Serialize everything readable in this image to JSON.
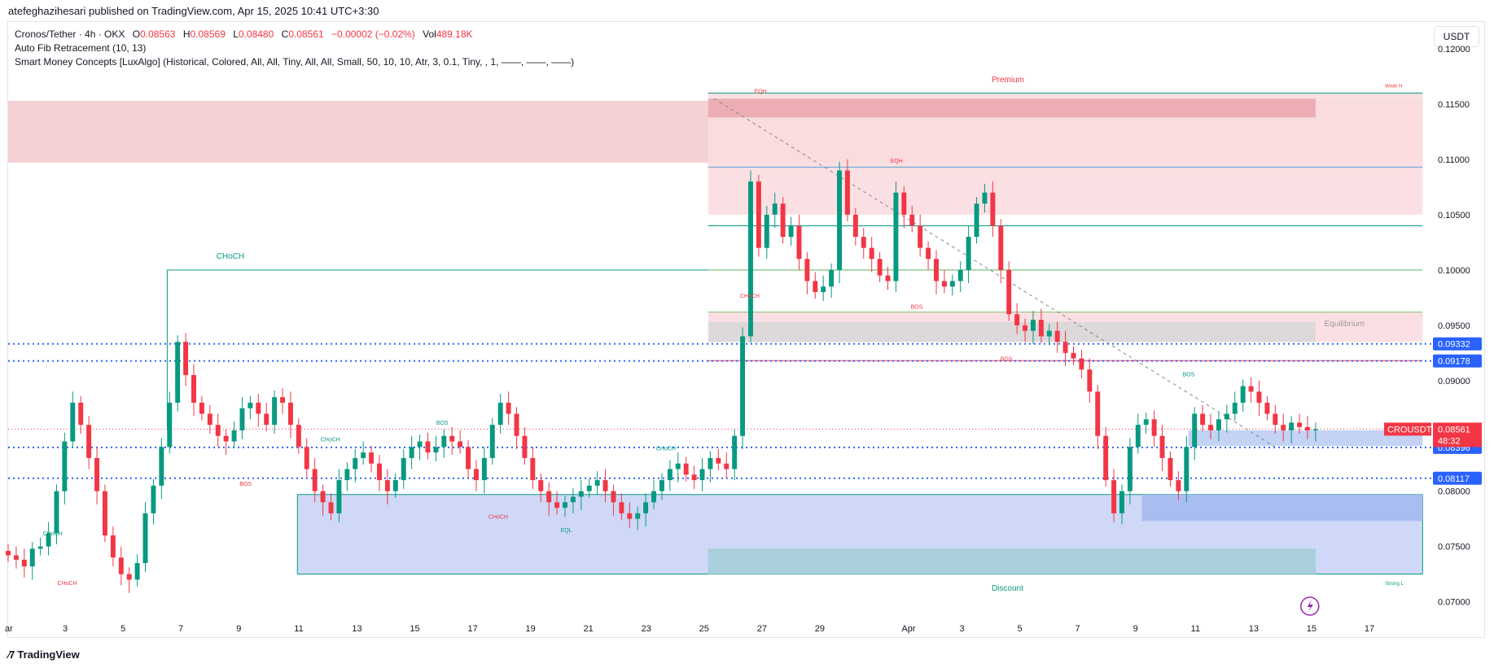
{
  "header": {
    "publisher_line": "atefeghazihesari published on TradingView.com, Apr 15, 2025 10:41 UTC+3:30"
  },
  "legend": {
    "symbol": "Cronos/Tether · 4h · OKX",
    "o_label": "O",
    "o_value": "0.08563",
    "h_label": "H",
    "h_value": "0.08569",
    "l_label": "L",
    "l_value": "0.08480",
    "c_label": "C",
    "c_value": "0.08561",
    "change": "−0.00002 (−0.02%)",
    "vol_label": "Vol",
    "vol_value": "489.18K",
    "indicator1": "Auto Fib Retracement (10, 13)",
    "indicator2": "Smart Money Concepts [LuxAlgo] (Historical, Colored, All, All, Tiny, All, All, Small, 50, 10, 10, Atr, 3, 0.1, Tiny, , 1, ——, ——, ——)"
  },
  "currency_button": "USDT",
  "footer": {
    "brand": "TradingView"
  },
  "colors": {
    "up": "#089981",
    "down": "#f23645",
    "blue": "#2962ff",
    "premium_red": "#f23645",
    "discount_teal": "#089981",
    "zone_red": "#f7c9cd",
    "zone_blue": "#c3cef5"
  },
  "chart_data": {
    "type": "candlestick",
    "symbol": "CROUSDT",
    "ylim": [
      0.0685,
      0.1225
    ],
    "y_ticks": [
      0.07,
      0.075,
      0.08,
      0.085,
      0.09,
      0.095,
      0.1,
      0.105,
      0.11,
      0.115,
      0.12
    ],
    "y_tick_labels": [
      "0.07000",
      "0.07500",
      "0.08000",
      "0.08500",
      "0.09000",
      "0.09500",
      "0.10000",
      "0.10500",
      "0.11000",
      "0.11500",
      "0.12000"
    ],
    "x_tick_labels": [
      {
        "label": "ar",
        "t": 0
      },
      {
        "label": "3",
        "t": 2
      },
      {
        "label": "5",
        "t": 4
      },
      {
        "label": "7",
        "t": 6
      },
      {
        "label": "9",
        "t": 8
      },
      {
        "label": "11",
        "t": 10
      },
      {
        "label": "13",
        "t": 12
      },
      {
        "label": "15",
        "t": 14
      },
      {
        "label": "17",
        "t": 16
      },
      {
        "label": "19",
        "t": 18
      },
      {
        "label": "21",
        "t": 20
      },
      {
        "label": "23",
        "t": 22
      },
      {
        "label": "25",
        "t": 24
      },
      {
        "label": "27",
        "t": 26
      },
      {
        "label": "29",
        "t": 28
      },
      {
        "label": "Apr",
        "t": 31
      },
      {
        "label": "3",
        "t": 33
      },
      {
        "label": "5",
        "t": 35
      },
      {
        "label": "7",
        "t": 37
      },
      {
        "label": "9",
        "t": 39
      },
      {
        "label": "11",
        "t": 41
      },
      {
        "label": "13",
        "t": 43
      },
      {
        "label": "15",
        "t": 45
      },
      {
        "label": "17",
        "t": 47
      }
    ],
    "t_range": [
      0,
      49.2
    ],
    "closes": [
      0.0742,
      0.0738,
      0.0732,
      0.0748,
      0.075,
      0.0762,
      0.08,
      0.0845,
      0.088,
      0.086,
      0.083,
      0.08,
      0.076,
      0.074,
      0.0725,
      0.072,
      0.0735,
      0.078,
      0.0805,
      0.084,
      0.088,
      0.0935,
      0.0905,
      0.088,
      0.087,
      0.086,
      0.085,
      0.0845,
      0.0855,
      0.0875,
      0.088,
      0.087,
      0.086,
      0.0885,
      0.088,
      0.086,
      0.084,
      0.082,
      0.08,
      0.079,
      0.078,
      0.081,
      0.082,
      0.083,
      0.0835,
      0.0825,
      0.081,
      0.08,
      0.081,
      0.083,
      0.084,
      0.0845,
      0.0835,
      0.084,
      0.085,
      0.0845,
      0.084,
      0.082,
      0.081,
      0.083,
      0.086,
      0.088,
      0.087,
      0.085,
      0.083,
      0.081,
      0.08,
      0.079,
      0.0785,
      0.079,
      0.0795,
      0.08,
      0.0805,
      0.081,
      0.08,
      0.079,
      0.078,
      0.0775,
      0.078,
      0.079,
      0.08,
      0.081,
      0.082,
      0.0825,
      0.0815,
      0.081,
      0.082,
      0.083,
      0.0825,
      0.082,
      0.085,
      0.094,
      0.108,
      0.102,
      0.105,
      0.106,
      0.103,
      0.104,
      0.101,
      0.099,
      0.098,
      0.0985,
      0.1,
      0.109,
      0.105,
      0.103,
      0.102,
      0.101,
      0.0995,
      0.099,
      0.107,
      0.105,
      0.104,
      0.102,
      0.101,
      0.099,
      0.0985,
      0.099,
      0.1,
      0.103,
      0.106,
      0.107,
      0.104,
      0.1,
      0.096,
      0.095,
      0.0945,
      0.0955,
      0.094,
      0.0945,
      0.0935,
      0.0925,
      0.092,
      0.091,
      0.089,
      0.085,
      0.081,
      0.078,
      0.08,
      0.084,
      0.086,
      0.0865,
      0.085,
      0.083,
      0.081,
      0.08,
      0.084,
      0.087,
      0.086,
      0.0855,
      0.0865,
      0.087,
      0.088,
      0.0895,
      0.089,
      0.088,
      0.087,
      0.086,
      0.0855,
      0.0862,
      0.0858,
      0.0855,
      0.0856
    ],
    "levels": [
      {
        "label": "0.09332",
        "value": 0.09332
      },
      {
        "label": "0.09178",
        "value": 0.09178
      },
      {
        "label": "0.08396",
        "value": 0.08396
      },
      {
        "label": "0.08117",
        "value": 0.08117
      }
    ],
    "last_price": {
      "symbol": "CROUSDT",
      "value": "0.08561",
      "countdown": "48:32",
      "y": 0.08561
    },
    "annotations": [
      {
        "text": "CHoCH"
      },
      {
        "text": "Premium"
      },
      {
        "text": "EQH"
      },
      {
        "text": "EQH"
      },
      {
        "text": "Equilibrium"
      },
      {
        "text": "Discount"
      },
      {
        "text": "BOS"
      },
      {
        "text": "BOS"
      },
      {
        "text": "BOS"
      },
      {
        "text": "BOS"
      },
      {
        "text": "BOS"
      },
      {
        "text": "CHoCH"
      },
      {
        "text": "CHoCH"
      },
      {
        "text": "CHoCH"
      },
      {
        "text": "CHoCH"
      },
      {
        "text": "CHoCH"
      },
      {
        "text": "CHoCH"
      },
      {
        "text": "EQL"
      },
      {
        "text": "Weak H"
      },
      {
        "text": "Strong L"
      }
    ]
  }
}
